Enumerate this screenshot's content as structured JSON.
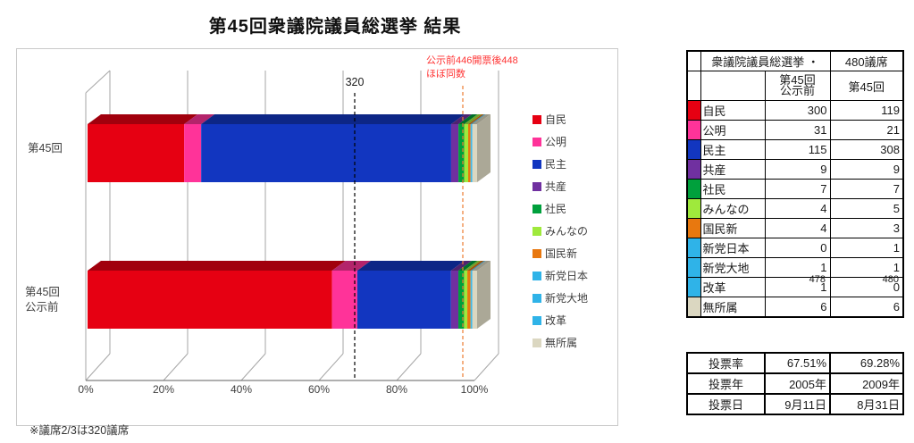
{
  "title": "第45回衆議院議員総選挙 結果",
  "note": "※議席2/3は320議席",
  "chart_data": {
    "type": "bar",
    "subtype": "horizontal-stacked-3d",
    "categories": [
      "第45回",
      "第45回公示前"
    ],
    "totals": [
      480,
      478
    ],
    "x_ticks": [
      "0%",
      "20%",
      "40%",
      "60%",
      "80%",
      "100%"
    ],
    "xlim": [
      0,
      100
    ],
    "legend_position": "right",
    "series": [
      {
        "name": "自民",
        "color": "#E60012",
        "values": [
          119,
          300
        ]
      },
      {
        "name": "公明",
        "color": "#FF3399",
        "values": [
          21,
          31
        ]
      },
      {
        "name": "民主",
        "color": "#1236C0",
        "values": [
          308,
          115
        ]
      },
      {
        "name": "共産",
        "color": "#7030A0",
        "values": [
          9,
          9
        ]
      },
      {
        "name": "社民",
        "color": "#00A03C",
        "values": [
          7,
          7
        ]
      },
      {
        "name": "みんなの",
        "color": "#9FE93C",
        "values": [
          5,
          4
        ]
      },
      {
        "name": "国民新",
        "color": "#E8780F",
        "values": [
          3,
          4
        ]
      },
      {
        "name": "新党日本",
        "color": "#2FB3E8",
        "values": [
          1,
          0
        ]
      },
      {
        "name": "新党大地",
        "color": "#2FB3E8",
        "values": [
          1,
          1
        ]
      },
      {
        "name": "改革",
        "color": "#2FB3E8",
        "values": [
          0,
          1
        ]
      },
      {
        "name": "無所属",
        "color": "#DBD7C1",
        "values": [
          6,
          6
        ]
      }
    ],
    "annotations": {
      "threshold_label": "320",
      "red_note_line1": "公示前446開票後448",
      "red_note_line2": "ほぼ同数"
    }
  },
  "labels": {
    "cat2_line1": "第45回",
    "cat2_line2": "公示前"
  },
  "seats_table": {
    "header_title": "衆議院議員総選挙 ・",
    "header_right": "480議席",
    "col1_header_line1": "第45回",
    "col1_header_line2": "公示前",
    "col2_header": "第45回",
    "total_before": "478",
    "total_after": "480"
  },
  "vote_table": {
    "rows": [
      {
        "label": "投票率",
        "v1": "67.51%",
        "v2": "69.28%"
      },
      {
        "label": "投票年",
        "v1": "2005年",
        "v2": "2009年"
      },
      {
        "label": "投票日",
        "v1": "9月11日",
        "v2": "8月31日"
      }
    ]
  }
}
